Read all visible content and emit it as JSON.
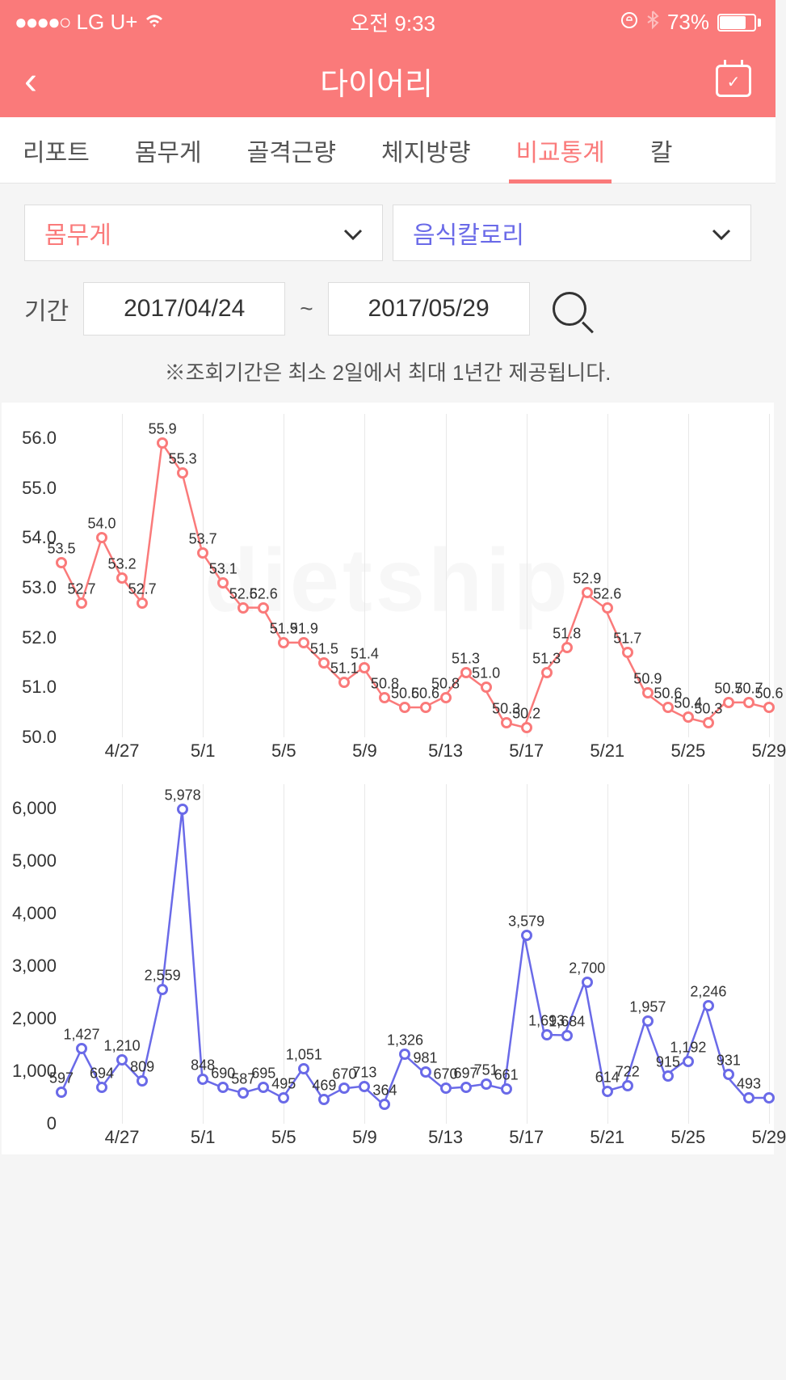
{
  "status": {
    "carrier": "LG U+",
    "signal": "●●●●○",
    "time": "오전 9:33",
    "battery_pct": "73%",
    "battery_fill": 73
  },
  "header": {
    "title": "다이어리"
  },
  "tabs": {
    "items": [
      "리포트",
      "몸무게",
      "골격근량",
      "체지방량",
      "비교통계",
      "칼"
    ],
    "active": 4
  },
  "selectors": {
    "left": "몸무게",
    "right": "음식칼로리"
  },
  "period": {
    "label": "기간",
    "start": "2017/04/24",
    "end": "2017/05/29",
    "sep": "~"
  },
  "note": "※조회기간은 최소 2일에서 최대 1년간 제공됩니다.",
  "chart1": {
    "type": "line",
    "color": "#fa7a7a",
    "ylim": [
      50,
      56
    ],
    "yticks": [
      50.0,
      51.0,
      52.0,
      53.0,
      54.0,
      55.0,
      56.0
    ],
    "xlabels": [
      "4/27",
      "5/1",
      "5/5",
      "5/9",
      "5/13",
      "5/17",
      "5/21",
      "5/25",
      "5/29"
    ],
    "xlabel_idx": [
      3,
      7,
      11,
      15,
      19,
      23,
      27,
      31,
      35
    ],
    "values": [
      53.5,
      52.7,
      54.0,
      53.2,
      52.7,
      55.9,
      55.3,
      53.7,
      53.1,
      52.6,
      52.6,
      51.9,
      51.9,
      51.5,
      51.1,
      51.4,
      50.8,
      50.6,
      50.6,
      50.8,
      51.3,
      51.0,
      50.3,
      50.2,
      51.3,
      51.8,
      52.9,
      52.6,
      51.7,
      50.9,
      50.6,
      50.4,
      50.3,
      50.7,
      50.7,
      50.6
    ],
    "value_labels": [
      "53.5",
      "52.7",
      "54.0",
      "53.2",
      "52.7",
      "55.9",
      "55.3",
      "53.7",
      "53.1",
      "52.6",
      "52.6",
      "51.9",
      "51.9",
      "51.5",
      "51.1",
      "51.4",
      "50.8",
      "50.6",
      "50.6",
      "50.8",
      "51.3",
      "51.0",
      "50.3",
      "50.2",
      "51.3",
      "51.8",
      "52.9",
      "52.6",
      "51.7",
      "50.9",
      "50.6",
      "50.4",
      "50.3",
      "50.7",
      "50.7",
      "50.6"
    ]
  },
  "chart2": {
    "type": "line",
    "color": "#6a6ae8",
    "ylim": [
      0,
      6000
    ],
    "yticks": [
      0,
      1000,
      2000,
      3000,
      4000,
      5000,
      6000
    ],
    "yticklabels": [
      "0",
      "1,000",
      "2,000",
      "3,000",
      "4,000",
      "5,000",
      "6,000"
    ],
    "xlabels": [
      "4/27",
      "5/1",
      "5/5",
      "5/9",
      "5/13",
      "5/17",
      "5/21",
      "5/25",
      "5/29"
    ],
    "xlabel_idx": [
      3,
      7,
      11,
      15,
      19,
      23,
      27,
      31,
      35
    ],
    "values": [
      597,
      1427,
      694,
      1210,
      809,
      2559,
      5978,
      848,
      690,
      587,
      695,
      495,
      1051,
      469,
      670,
      713,
      364,
      1326,
      981,
      670,
      697,
      751,
      661,
      3579,
      1693,
      1684,
      2700,
      614,
      722,
      1957,
      915,
      1192,
      2246,
      931,
      493,
      493
    ],
    "value_labels": [
      "597",
      "1,427",
      "694",
      "1,210",
      "809",
      "2,559",
      "5,978",
      "848",
      "690",
      "587",
      "695",
      "495",
      "1,051",
      "469",
      "670",
      "713",
      "364",
      "1,326",
      "981",
      "670",
      "697",
      "751",
      "661",
      "3,579",
      "1,693",
      "1,684",
      "2,700",
      "614",
      "722",
      "1,957",
      "915",
      "1,192",
      "2,246",
      "931",
      "493",
      ""
    ]
  },
  "colors": {
    "primary": "#fa7a7a",
    "secondary": "#6a6ae8",
    "bg": "#f5f5f5",
    "grid": "#e8e8e8"
  }
}
